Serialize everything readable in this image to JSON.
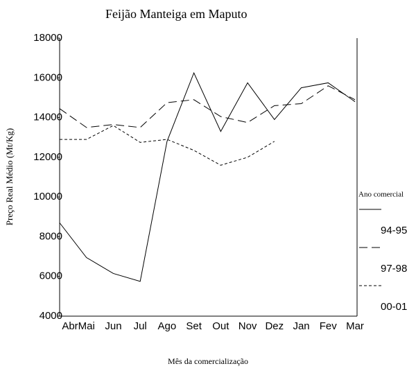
{
  "chart_data": {
    "type": "line",
    "title": "Feijão Manteiga em Maputo",
    "x_label": "Mês da comercialização",
    "y_label": "Preço Real Médio (Mt/Kg)",
    "legend_title": "Ano comercial",
    "legend": "right",
    "categories": [
      "Abr",
      "Mai",
      "Jun",
      "Jul",
      "Ago",
      "Set",
      "Out",
      "Nov",
      "Dez",
      "Jan",
      "Fev",
      "Mar"
    ],
    "series": [
      {
        "name": "94-95",
        "color": "#000000",
        "line_style": "solid",
        "values": [
          8700,
          6950,
          6150,
          5750,
          12800,
          16250,
          13300,
          15750,
          13900,
          15500,
          15750,
          14800
        ]
      },
      {
        "name": "97-98",
        "color": "#000000",
        "line_style": "dashed",
        "values": [
          14450,
          13500,
          13650,
          13500,
          14750,
          14900,
          14050,
          13750,
          14600,
          14700,
          15600,
          14900
        ]
      },
      {
        "name": "00-01",
        "color": "#000000",
        "line_style": "dotted",
        "values": [
          12900,
          12900,
          13600,
          12750,
          12900,
          12350,
          11600,
          12000,
          12800,
          null,
          null,
          null
        ]
      }
    ],
    "ylim": [
      4000,
      18000
    ],
    "yticks": [
      4000,
      6000,
      8000,
      10000,
      12000,
      14000,
      16000,
      18000
    ],
    "grid": false
  }
}
